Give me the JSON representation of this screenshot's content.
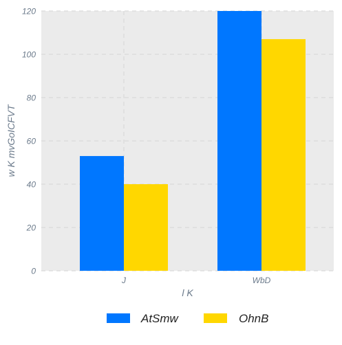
{
  "chart_data": {
    "type": "bar",
    "title": "",
    "xlabel": "l K",
    "ylabel": "w K mvGoICFVT",
    "categories": [
      "J",
      "WbD"
    ],
    "series": [
      {
        "name": "AtSmw",
        "values": [
          53,
          120
        ],
        "color": "#0077FF"
      },
      {
        "name": "OhnB",
        "values": [
          40,
          107
        ],
        "color": "#FFD700"
      }
    ],
    "ylim": [
      0,
      120
    ],
    "yticks": [
      0,
      20,
      40,
      60,
      80,
      100,
      120
    ],
    "grid": true,
    "legend_position": "bottom",
    "colors": {
      "plot_background": "#EBEBEB",
      "grid": "#D9D9D9",
      "tick_text": "#6B7A8B"
    }
  }
}
